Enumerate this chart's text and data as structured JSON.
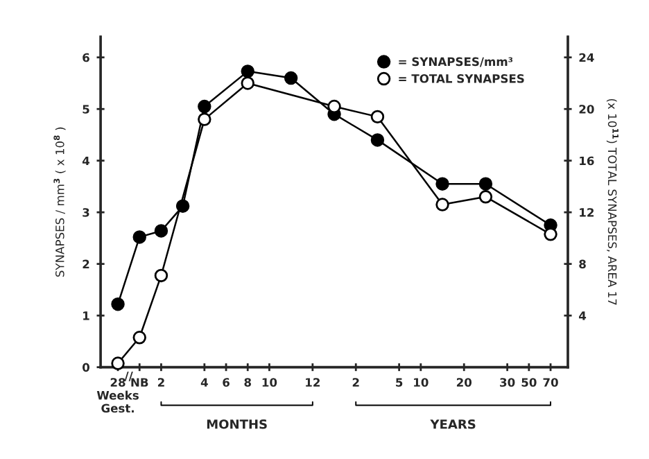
{
  "chart_data": {
    "type": "line",
    "ylabel": "SYNAPSES / mm$^{3}$ ( x 10$^{8}$ )",
    "y2label": "(x 10$^{11}$) TOTAL SYNAPSES, AREA 17",
    "categories": [
      "28\nWeeks\nGest.",
      "NB",
      "2",
      null,
      "4",
      "6",
      "8",
      "10",
      null,
      "12",
      null,
      "2",
      null,
      "5",
      "10",
      null,
      "20",
      null,
      "30",
      "50",
      "70"
    ],
    "ylim": [
      0,
      6.4
    ],
    "y2lim": [
      0,
      25.6
    ],
    "yticks": [
      0,
      1,
      2,
      3,
      4,
      5,
      6
    ],
    "y2ticks": [
      4,
      8,
      12,
      16,
      20,
      24
    ],
    "series": [
      {
        "name": "= SYNAPSES/mm³",
        "color": "#000000",
        "marker": "circle",
        "values": [
          1.22,
          2.52,
          2.64,
          3.12,
          5.05,
          null,
          5.73,
          null,
          5.6,
          null,
          4.9,
          null,
          4.4,
          null,
          null,
          3.55,
          null,
          3.55,
          null,
          null,
          2.75
        ]
      },
      {
        "name": "= TOTAL SYNAPSES",
        "color": "#ffffff",
        "marker": "circle",
        "axis": "y2",
        "values": [
          0.3,
          2.3,
          7.1,
          null,
          19.2,
          null,
          22.0,
          null,
          null,
          null,
          20.2,
          null,
          19.4,
          null,
          null,
          12.6,
          null,
          13.2,
          null,
          null,
          10.3
        ]
      }
    ],
    "annotations": [
      "//",
      "MONTHS",
      "YEARS"
    ],
    "legend": "top right"
  }
}
